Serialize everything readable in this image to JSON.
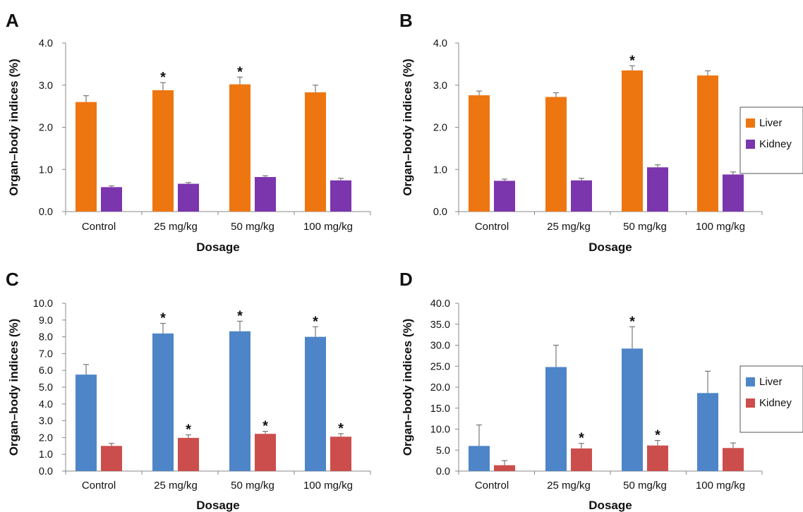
{
  "chart_data": [
    {
      "panel": "A",
      "type": "bar",
      "categories": [
        "Control",
        "25 mg/kg",
        "50 mg/kg",
        "100 mg/kg"
      ],
      "xlabel": "Dosage",
      "ylabel": "Organ–body indices (%)",
      "ylim": [
        0,
        4
      ],
      "yticks": [
        "0.0",
        "1.0",
        "2.0",
        "3.0",
        "4.0"
      ],
      "series": [
        {
          "name": "Liver",
          "color": "#EE7611",
          "values": [
            2.6,
            2.88,
            3.02,
            2.83
          ],
          "errors": [
            0.15,
            0.18,
            0.17,
            0.17
          ],
          "significant": [
            false,
            true,
            true,
            false
          ]
        },
        {
          "name": "Kidney",
          "color": "#7B35AD",
          "values": [
            0.58,
            0.66,
            0.82,
            0.74
          ],
          "errors": [
            0.03,
            0.03,
            0.03,
            0.05
          ],
          "significant": [
            false,
            false,
            false,
            false
          ]
        }
      ],
      "legend": "none"
    },
    {
      "panel": "B",
      "type": "bar",
      "categories": [
        "Control",
        "25 mg/kg",
        "50 mg/kg",
        "100 mg/kg"
      ],
      "xlabel": "Dosage",
      "ylabel": "Organ–body indices (%)",
      "ylim": [
        0,
        4
      ],
      "yticks": [
        "0.0",
        "1.0",
        "2.0",
        "3.0",
        "4.0"
      ],
      "series": [
        {
          "name": "Liver",
          "color": "#EE7611",
          "values": [
            2.76,
            2.72,
            3.35,
            3.23
          ],
          "errors": [
            0.1,
            0.1,
            0.11,
            0.11
          ],
          "significant": [
            false,
            false,
            true,
            false
          ]
        },
        {
          "name": "Kidney",
          "color": "#7B35AD",
          "values": [
            0.73,
            0.74,
            1.05,
            0.88
          ],
          "errors": [
            0.04,
            0.05,
            0.06,
            0.06
          ],
          "significant": [
            false,
            false,
            false,
            false
          ]
        }
      ],
      "legend": "right"
    },
    {
      "panel": "C",
      "type": "bar",
      "categories": [
        "Control",
        "25 mg/kg",
        "50 mg/kg",
        "100 mg/kg"
      ],
      "xlabel": "Dosage",
      "ylabel": "Organ–body indices (%)",
      "ylim": [
        0,
        10
      ],
      "yticks": [
        "0.0",
        "1.0",
        "2.0",
        "3.0",
        "4.0",
        "5.0",
        "6.0",
        "7.0",
        "8.0",
        "9.0",
        "10.0"
      ],
      "series": [
        {
          "name": "Liver",
          "color": "#4E85C8",
          "values": [
            5.75,
            8.2,
            8.33,
            8.0
          ],
          "errors": [
            0.6,
            0.6,
            0.6,
            0.6
          ],
          "significant": [
            false,
            true,
            true,
            true
          ]
        },
        {
          "name": "Kidney",
          "color": "#CC4E4C",
          "values": [
            1.5,
            1.98,
            2.22,
            2.05
          ],
          "errors": [
            0.15,
            0.18,
            0.15,
            0.18
          ],
          "significant": [
            false,
            true,
            true,
            true
          ]
        }
      ],
      "legend": "none"
    },
    {
      "panel": "D",
      "type": "bar",
      "categories": [
        "Control",
        "25 mg/kg",
        "50 mg/kg",
        "100 mg/kg"
      ],
      "xlabel": "Dosage",
      "ylabel": "Organ–body indices (%)",
      "ylim": [
        0,
        40
      ],
      "yticks": [
        "0.0",
        "5.0",
        "10.0",
        "15.0",
        "20.0",
        "25.0",
        "30.0",
        "35.0",
        "40.0"
      ],
      "series": [
        {
          "name": "Liver",
          "color": "#4E85C8",
          "values": [
            6.0,
            24.8,
            29.2,
            18.6
          ],
          "errors": [
            5.0,
            5.2,
            5.2,
            5.2
          ],
          "significant": [
            false,
            false,
            true,
            false
          ]
        },
        {
          "name": "Kidney",
          "color": "#CC4E4C",
          "values": [
            1.4,
            5.4,
            6.1,
            5.5
          ],
          "errors": [
            1.1,
            1.2,
            1.2,
            1.2
          ],
          "significant": [
            false,
            true,
            true,
            false
          ]
        }
      ],
      "legend": "right"
    }
  ]
}
